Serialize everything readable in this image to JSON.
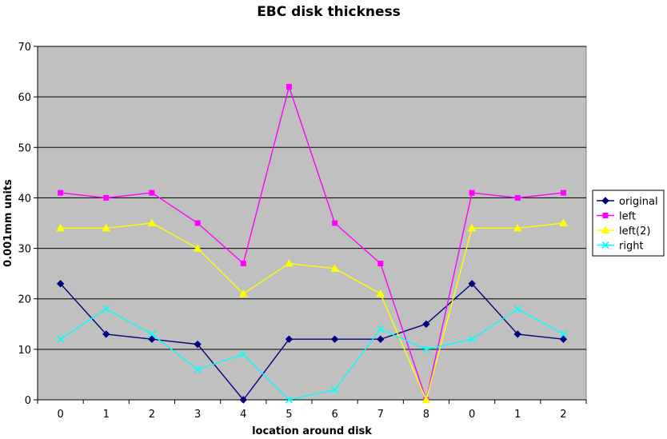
{
  "chart_data": {
    "type": "line",
    "title": "EBC disk thickness",
    "xlabel": "location around disk",
    "ylabel": "0.001mm units",
    "categories": [
      "0",
      "1",
      "2",
      "3",
      "4",
      "5",
      "6",
      "7",
      "8",
      "0",
      "1",
      "2"
    ],
    "ylim": [
      0,
      70
    ],
    "yticks": [
      0,
      10,
      20,
      30,
      40,
      50,
      60,
      70
    ],
    "grid": true,
    "legend_position": "right",
    "plot_background": "#c0c0c0",
    "series": [
      {
        "name": "original",
        "color": "#000080",
        "marker": "diamond",
        "values": [
          23,
          13,
          12,
          11,
          0,
          12,
          12,
          12,
          15,
          23,
          13,
          12
        ]
      },
      {
        "name": "left",
        "color": "#ff00ff",
        "marker": "square",
        "values": [
          41,
          40,
          41,
          35,
          27,
          62,
          35,
          27,
          0,
          41,
          40,
          41
        ]
      },
      {
        "name": "left(2)",
        "color": "#ffff00",
        "marker": "triangle",
        "values": [
          34,
          34,
          35,
          30,
          21,
          27,
          26,
          21,
          0,
          34,
          34,
          35
        ]
      },
      {
        "name": "right",
        "color": "#00ffff",
        "marker": "x",
        "values": [
          12,
          18,
          13,
          6,
          9,
          0,
          2,
          14,
          10,
          12,
          18,
          13
        ]
      }
    ]
  }
}
